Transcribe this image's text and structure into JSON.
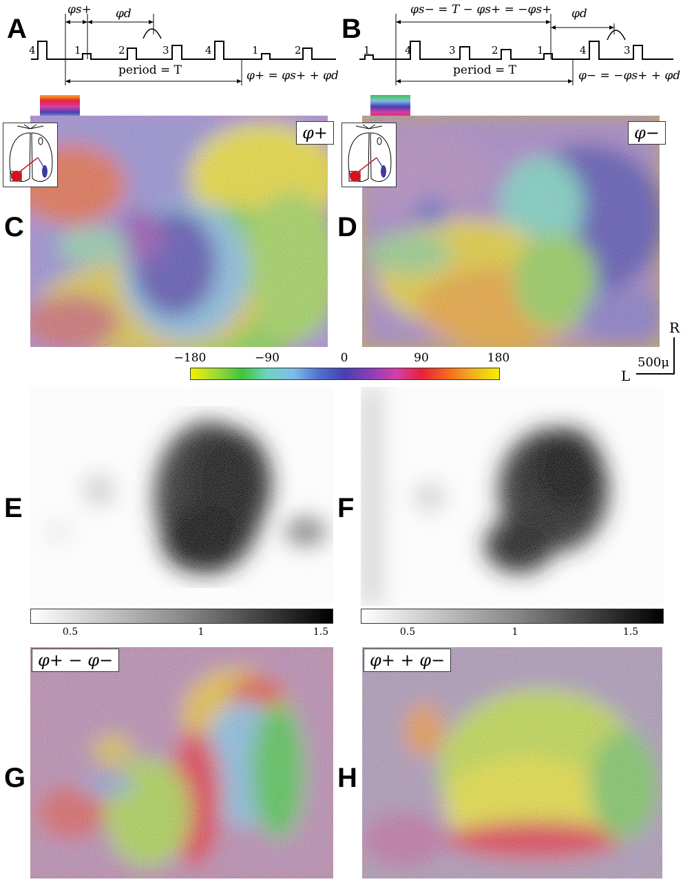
{
  "panels": {
    "A": "A",
    "B": "B",
    "C": "C",
    "D": "D",
    "E": "E",
    "F": "F",
    "G": "G",
    "H": "H"
  },
  "timing_A": {
    "pulse_numbers": [
      "4",
      "1",
      "2",
      "3",
      "4",
      "1",
      "2"
    ],
    "phi_s_plus": "φs+",
    "phi_d": "φd",
    "period": "period = T",
    "phi_plus_eq": "φ+ = φs+ + φd"
  },
  "timing_B": {
    "pulse_numbers": [
      "1",
      "4",
      "3",
      "2",
      "1",
      "4",
      "3"
    ],
    "phi_s_minus_eq": "φs− = T − φs+ = −φs+",
    "phi_d": "φd",
    "period": "period = T",
    "phi_minus_eq": "φ− = −φs+ + φd"
  },
  "phase_maps": {
    "C_tag": "φ+",
    "D_tag": "φ−",
    "G_tag": "φ+ − φ−",
    "H_tag": "φ+ + φ−"
  },
  "phase_colorbar": {
    "ticks": [
      "−180",
      "−90",
      "0",
      "90",
      "180"
    ],
    "colors": [
      "#f4f000",
      "#9fd83a",
      "#3ec43c",
      "#6fd3c4",
      "#7fbde8",
      "#4f6fd0",
      "#4a3fb0",
      "#8a3fb8",
      "#d23fa8",
      "#e8203a",
      "#f46a1e",
      "#f4b020",
      "#f4f000"
    ]
  },
  "amplitude_colorbars": {
    "E_ticks": [
      "0.5",
      "1",
      "1.5"
    ],
    "F_ticks": [
      "0.5",
      "1",
      "1.5"
    ]
  },
  "scale": {
    "R": "R",
    "L": "L",
    "bar": "500μ"
  }
}
